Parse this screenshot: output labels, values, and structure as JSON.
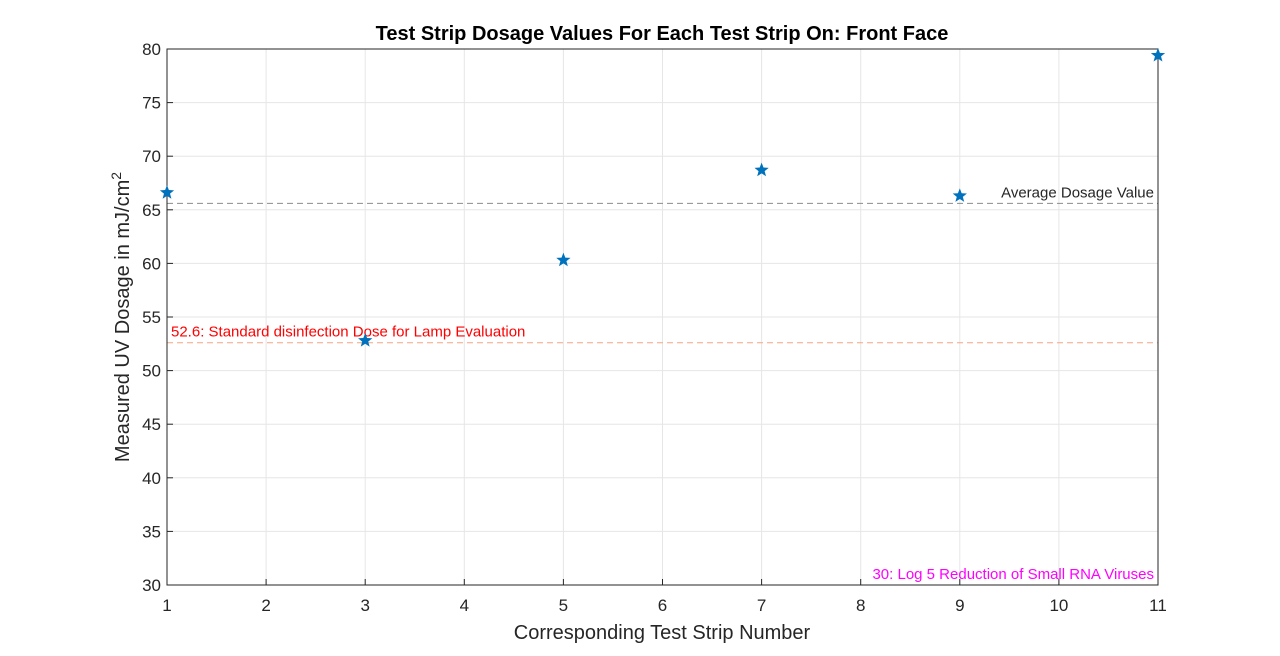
{
  "chart_data": {
    "type": "scatter",
    "title": "Test Strip Dosage Values For Each Test Strip On: Front Face",
    "xlabel": "Corresponding Test Strip Number",
    "ylabel_main": "Measured UV Dosage in mJ/cm",
    "ylabel_sup": "2",
    "xlim": [
      1,
      11
    ],
    "ylim": [
      30,
      80
    ],
    "x_ticks": [
      "1",
      "2",
      "3",
      "4",
      "5",
      "6",
      "7",
      "8",
      "9",
      "10",
      "11"
    ],
    "y_ticks": [
      "30",
      "35",
      "40",
      "45",
      "50",
      "55",
      "60",
      "65",
      "70",
      "75",
      "80"
    ],
    "grid": true,
    "marker": "pentagram",
    "marker_color": "#0072BD",
    "points": [
      {
        "x": 1,
        "y": 66.6
      },
      {
        "x": 3,
        "y": 52.8
      },
      {
        "x": 5,
        "y": 60.3
      },
      {
        "x": 7,
        "y": 68.7
      },
      {
        "x": 9,
        "y": 66.3
      },
      {
        "x": 11,
        "y": 79.4
      }
    ],
    "reference_lines": [
      {
        "y": 65.6,
        "label": "Average Dosage Value",
        "color": "#8c8c8c",
        "text_color": "#262626",
        "label_align": "right"
      },
      {
        "y": 52.6,
        "label": "52.6: Standard disinfection Dose for Lamp Evaluation",
        "color": "#f4a582",
        "text_color": "#ff0000",
        "label_align": "left"
      },
      {
        "y": 30,
        "label": "30: Log 5 Reduction of Small RNA Viruses",
        "color": "#ff00ff",
        "text_color": "#ff00ff",
        "label_align": "right"
      }
    ]
  }
}
